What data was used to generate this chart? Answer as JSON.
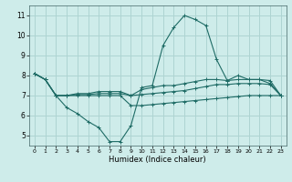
{
  "title": "",
  "xlabel": "Humidex (Indice chaleur)",
  "background_color": "#ceecea",
  "grid_color": "#aed4d2",
  "line_color": "#1e6b65",
  "xlim": [
    -0.5,
    23.5
  ],
  "ylim": [
    4.5,
    11.5
  ],
  "xticks": [
    0,
    1,
    2,
    3,
    4,
    5,
    6,
    7,
    8,
    9,
    10,
    11,
    12,
    13,
    14,
    15,
    16,
    17,
    18,
    19,
    20,
    21,
    22,
    23
  ],
  "yticks": [
    5,
    6,
    7,
    8,
    9,
    10,
    11
  ],
  "series": [
    [
      8.1,
      7.8,
      7.0,
      6.4,
      6.1,
      5.7,
      5.4,
      4.7,
      4.7,
      5.5,
      7.4,
      7.5,
      9.5,
      10.4,
      11.0,
      10.8,
      10.5,
      8.8,
      7.75,
      8.0,
      7.8,
      7.8,
      7.6,
      7.0
    ],
    [
      8.1,
      7.8,
      7.0,
      7.0,
      7.1,
      7.1,
      7.2,
      7.2,
      7.2,
      7.0,
      7.3,
      7.4,
      7.5,
      7.5,
      7.6,
      7.7,
      7.8,
      7.8,
      7.75,
      7.8,
      7.8,
      7.8,
      7.75,
      7.0
    ],
    [
      8.1,
      7.8,
      7.0,
      7.0,
      7.05,
      7.05,
      7.1,
      7.1,
      7.1,
      7.0,
      7.05,
      7.1,
      7.15,
      7.2,
      7.25,
      7.35,
      7.45,
      7.55,
      7.55,
      7.6,
      7.6,
      7.6,
      7.55,
      7.0
    ],
    [
      8.1,
      7.8,
      7.0,
      7.0,
      7.0,
      7.0,
      7.0,
      7.0,
      7.0,
      6.5,
      6.5,
      6.55,
      6.6,
      6.65,
      6.7,
      6.75,
      6.8,
      6.85,
      6.9,
      6.95,
      7.0,
      7.0,
      7.0,
      7.0
    ]
  ]
}
